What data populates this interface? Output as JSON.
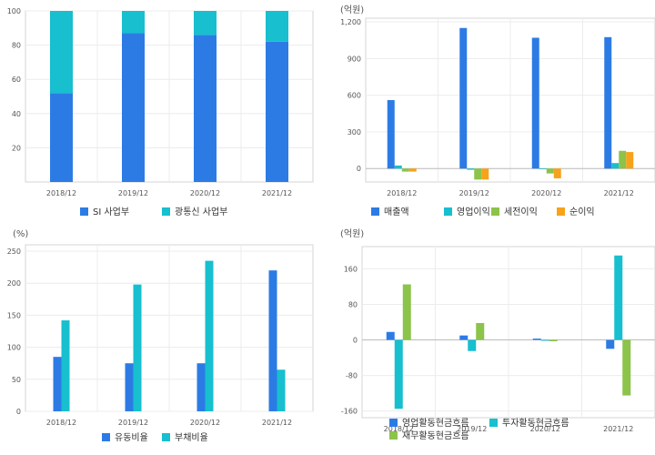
{
  "chart_data": [
    {
      "type": "bar",
      "stacked": true,
      "unit": "",
      "categories": [
        "2018/12",
        "2019/12",
        "2020/12",
        "2021/12"
      ],
      "series": [
        {
          "name": "SI 사업부",
          "values": [
            52,
            87,
            86,
            82
          ]
        },
        {
          "name": "광통신 사업부",
          "values": [
            48,
            13,
            14,
            18
          ]
        }
      ],
      "ylim": [
        0,
        100
      ],
      "yticks": [
        20,
        40,
        60,
        80,
        100
      ],
      "legend": "bottom",
      "grid": true
    },
    {
      "type": "bar",
      "unit": "(억원)",
      "categories": [
        "2018/12",
        "2019/12",
        "2020/12",
        "2021/12"
      ],
      "series": [
        {
          "name": "매출액",
          "values": [
            560,
            1150,
            1070,
            1075
          ]
        },
        {
          "name": "영업이익",
          "values": [
            25,
            -10,
            0,
            45
          ]
        },
        {
          "name": "세전이익",
          "values": [
            -25,
            -90,
            -40,
            145
          ]
        },
        {
          "name": "순이익",
          "values": [
            -25,
            -90,
            -80,
            135
          ]
        }
      ],
      "ylim": [
        -110,
        1230
      ],
      "yticks": [
        0,
        300,
        600,
        900,
        1200
      ],
      "ytick_labels": [
        "0",
        "300",
        "600",
        "900",
        "1,200"
      ],
      "legend": "bottom",
      "grid": true
    },
    {
      "type": "bar",
      "unit": "(%)",
      "categories": [
        "2018/12",
        "2019/12",
        "2020/12",
        "2021/12"
      ],
      "series": [
        {
          "name": "유동비율",
          "values": [
            85,
            75,
            75,
            220
          ]
        },
        {
          "name": "부채비율",
          "values": [
            142,
            198,
            235,
            65
          ]
        }
      ],
      "ylim": [
        0,
        260
      ],
      "yticks": [
        0,
        50,
        100,
        150,
        200,
        250
      ],
      "legend": "bottom",
      "grid": true
    },
    {
      "type": "bar",
      "unit": "(억원)",
      "categories": [
        "2018/12",
        "2019/12",
        "2020/12",
        "2021/12"
      ],
      "series": [
        {
          "name": "영업활동현금흐름",
          "values": [
            18,
            10,
            3,
            -20
          ]
        },
        {
          "name": "투자활동현금흐름",
          "values": [
            -155,
            -25,
            -2,
            190
          ]
        },
        {
          "name": "재무활동현금흐름",
          "values": [
            125,
            38,
            -3,
            -125
          ]
        }
      ],
      "ylim": [
        -175,
        210
      ],
      "yticks": [
        -160,
        -80,
        0,
        80,
        160
      ],
      "legend": "bottom",
      "grid": true
    }
  ],
  "colors": [
    "#2c7be5",
    "#17bfcf",
    "#8cc34a",
    "#f7a21b"
  ]
}
